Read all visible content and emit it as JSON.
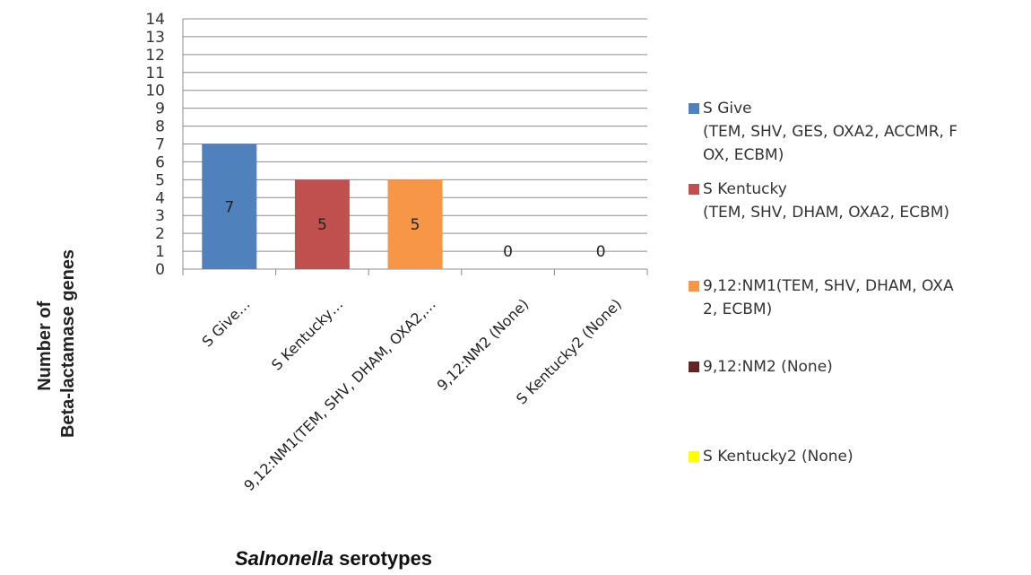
{
  "chart_data": {
    "type": "bar",
    "categories": [
      "S Give…",
      "S Kentucky…",
      "9,12:NM1(TEM, SHV, DHAM, OXA2,…",
      "9,12:NM2 (None)",
      "S Kentucky2 (None)"
    ],
    "values": [
      7,
      5,
      5,
      0,
      0
    ],
    "colors": [
      "#4f81bd",
      "#c0504d",
      "#f79646",
      "#632523",
      "#ffff00"
    ],
    "ylim": [
      0,
      14
    ],
    "yticks": [
      0,
      1,
      2,
      3,
      4,
      5,
      6,
      7,
      8,
      9,
      10,
      11,
      12,
      13,
      14
    ],
    "ylabel": [
      "Number of",
      "Beta-lactamase genes"
    ],
    "xlabel_italic": "Salnonella",
    "xlabel_rest": " serotypes",
    "grid": true,
    "legend_position": "right",
    "legend": [
      {
        "label": "S Give\n(TEM, SHV, GES, OXA2, ACCMR, F\nOX, ECBM)",
        "color": "#4f81bd"
      },
      {
        "label": "S Kentucky\n(TEM, SHV, DHAM, OXA2, ECBM)",
        "color": "#c0504d"
      },
      {
        "label": "9,12:NM1(TEM, SHV, DHAM, OXA\n2, ECBM)",
        "color": "#f79646"
      },
      {
        "label": "9,12:NM2 (None)",
        "color": "#632523"
      },
      {
        "label": "S Kentucky2 (None)",
        "color": "#ffff00"
      }
    ]
  }
}
